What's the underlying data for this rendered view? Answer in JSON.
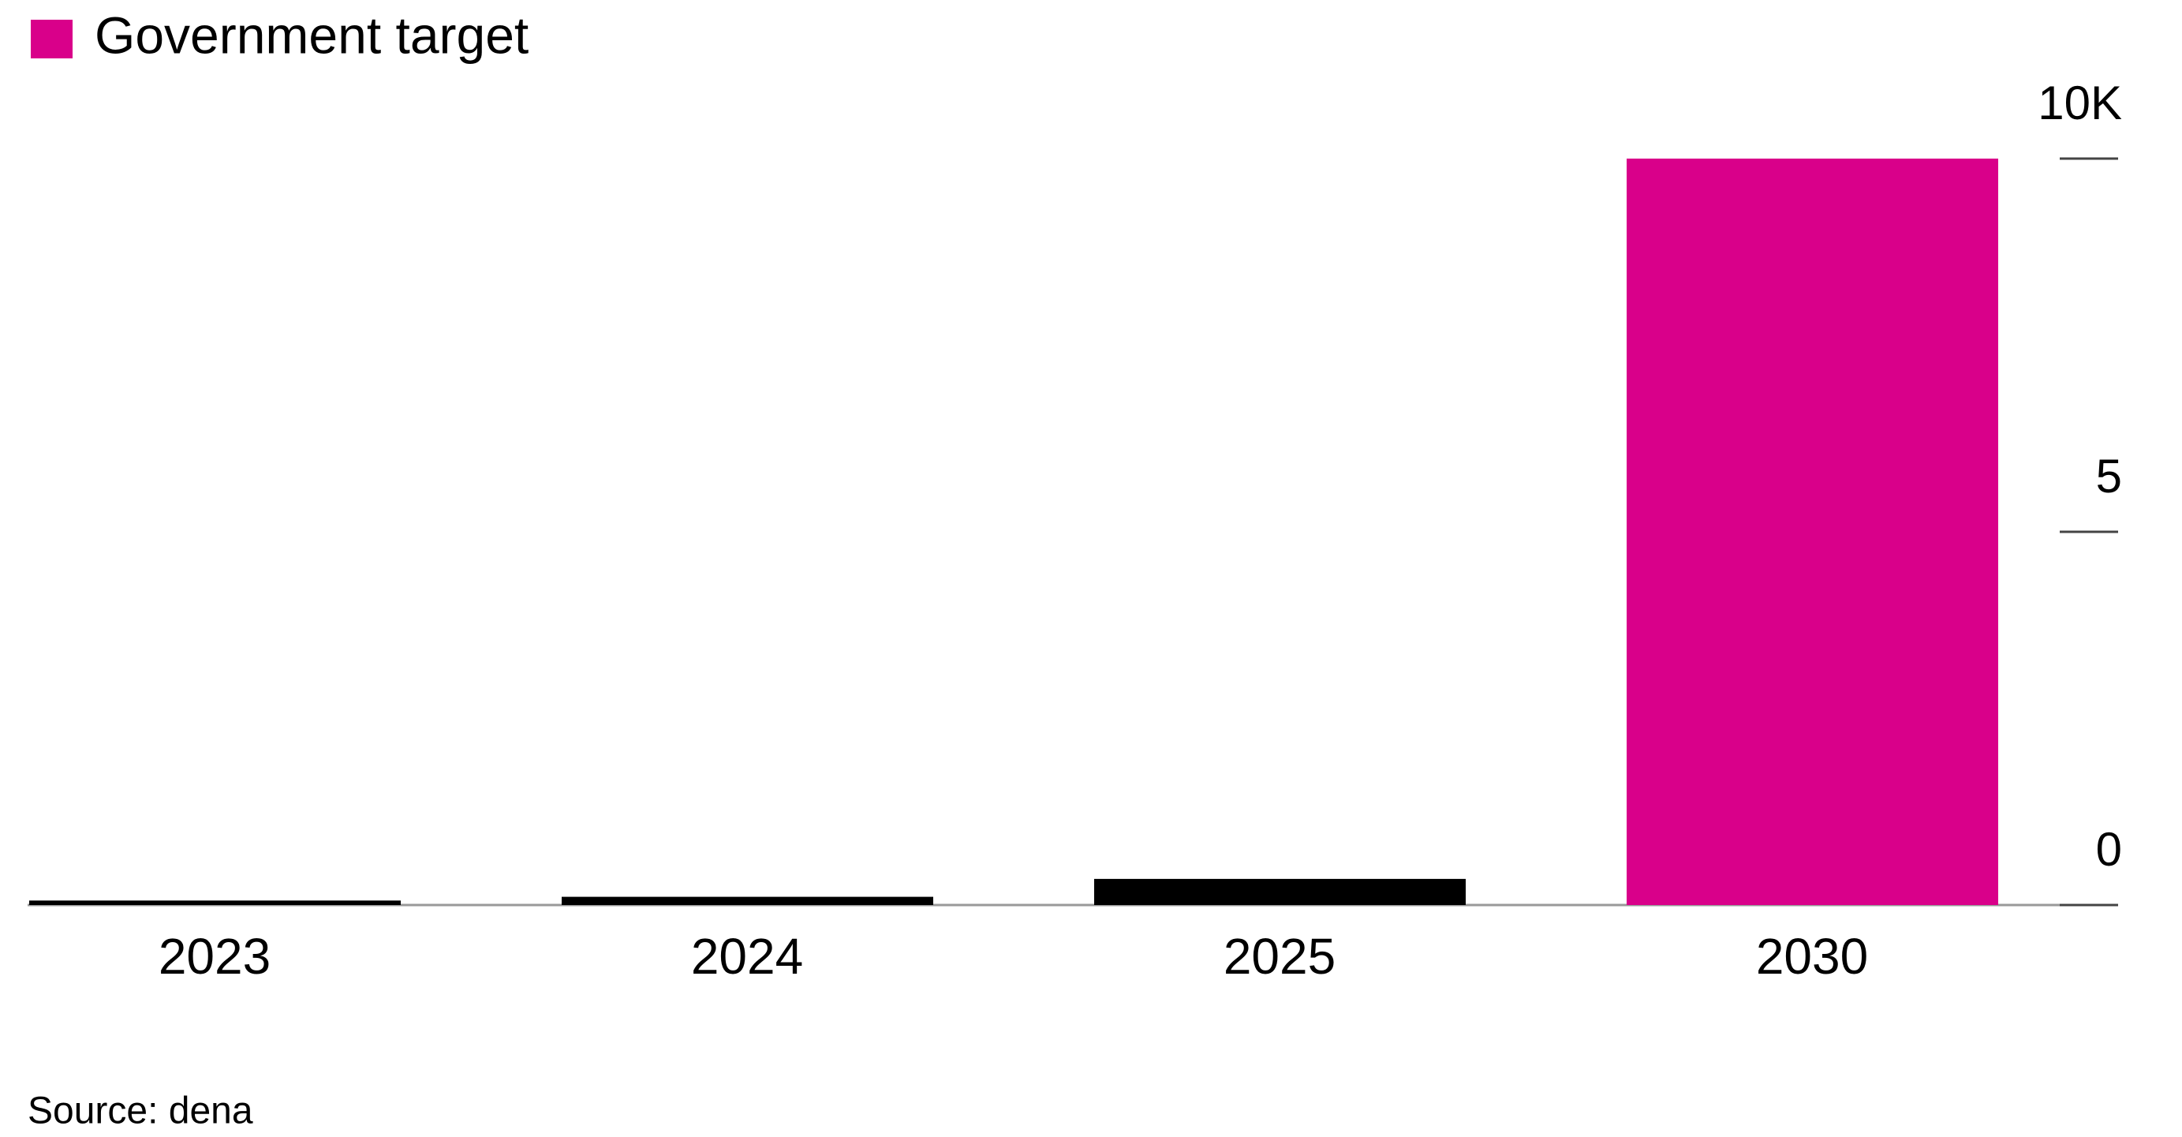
{
  "chart_data": {
    "type": "bar",
    "legend": {
      "label": "Government target",
      "color": "#d9008a"
    },
    "categories": [
      "2023",
      "2024",
      "2025",
      "2030"
    ],
    "values": [
      0.06,
      0.11,
      0.35,
      10
    ],
    "colors": [
      "#000000",
      "#000000",
      "#000000",
      "#d9008a"
    ],
    "ylim": [
      0,
      10
    ],
    "yticks": [
      0,
      5,
      {
        "value": 10,
        "label": "10K"
      }
    ],
    "source": "Source: dena"
  }
}
